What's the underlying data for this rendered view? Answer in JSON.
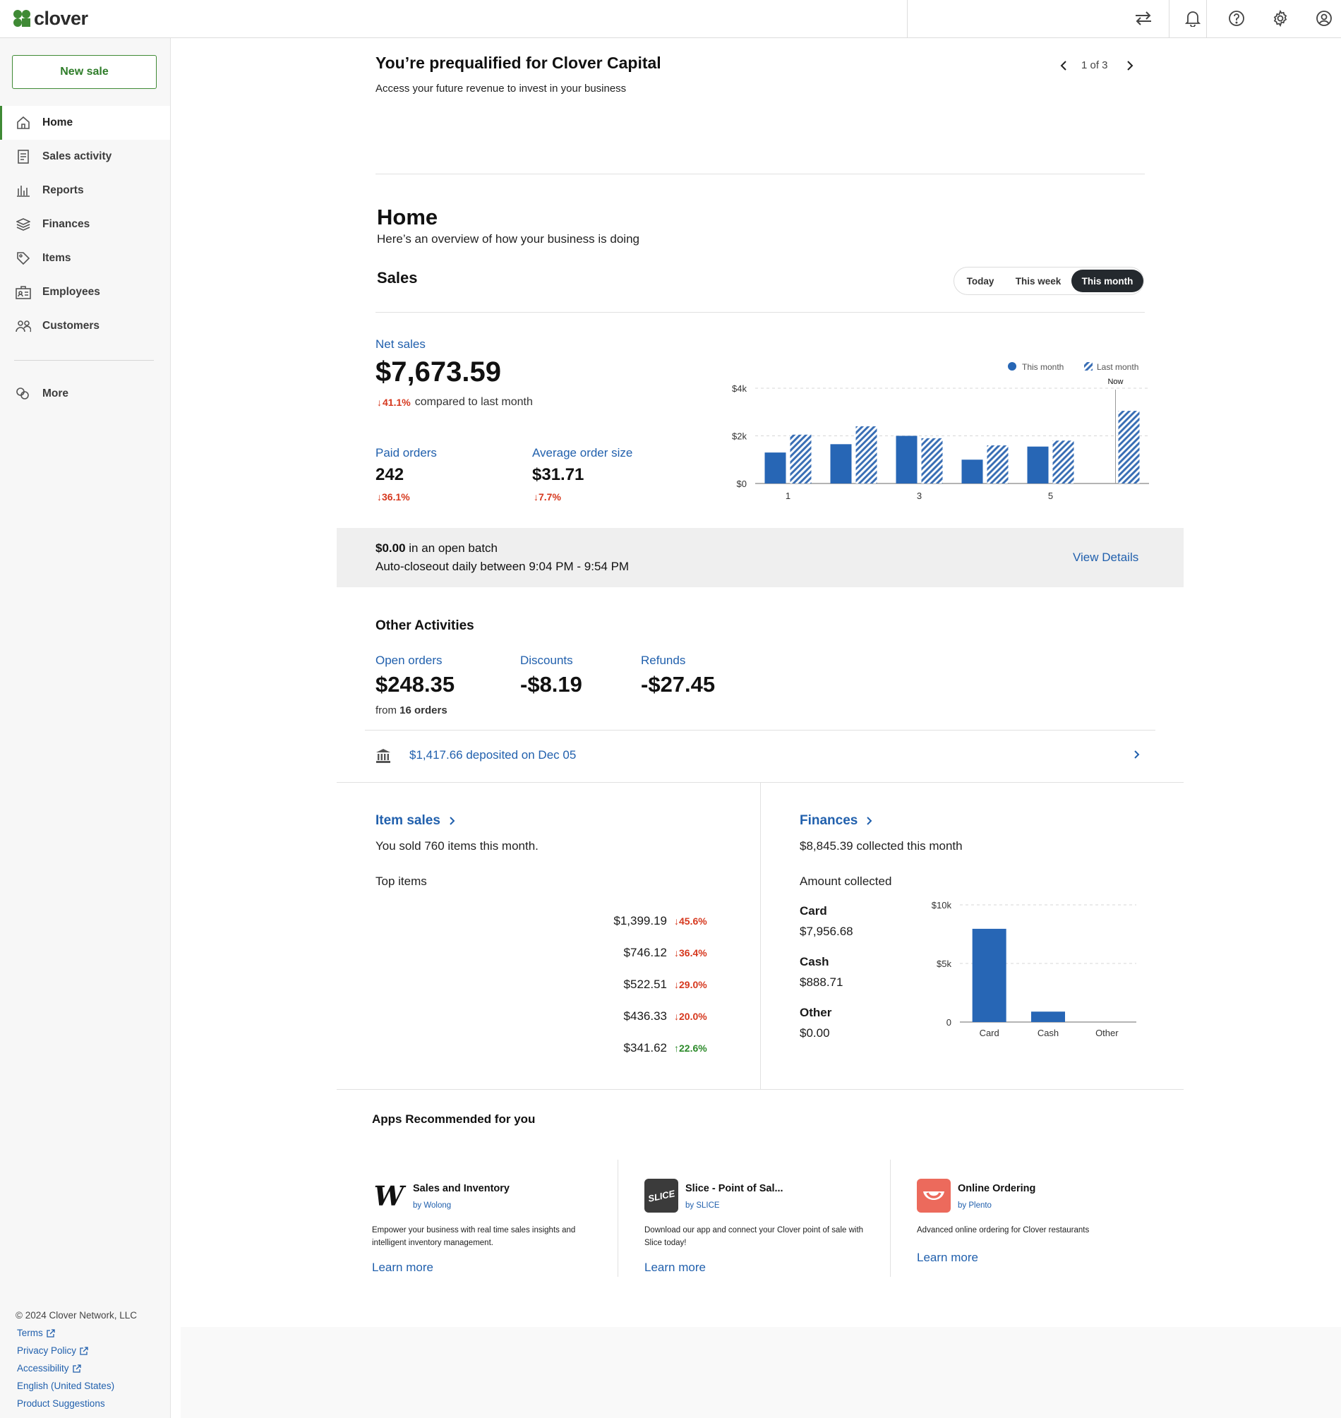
{
  "brand": {
    "name": "clover",
    "green": "#3f8a35",
    "blue": "#2766b5"
  },
  "topbar": {
    "icons": [
      "swap-icon",
      "bell-icon",
      "help-icon",
      "gear-icon",
      "account-icon"
    ]
  },
  "sidebar": {
    "new_sale": "New sale",
    "items": [
      {
        "label": "Home",
        "icon": "home-icon",
        "active": true
      },
      {
        "label": "Sales activity",
        "icon": "receipt-icon"
      },
      {
        "label": "Reports",
        "icon": "bar-chart-icon"
      },
      {
        "label": "Finances",
        "icon": "layers-icon"
      },
      {
        "label": "Items",
        "icon": "tag-icon"
      },
      {
        "label": "Employees",
        "icon": "badge-icon"
      },
      {
        "label": "Customers",
        "icon": "people-icon"
      }
    ],
    "more": "More",
    "footer": {
      "copyright": "© 2024 Clover Network, LLC",
      "links": [
        "Terms",
        "Privacy Policy",
        "Accessibility"
      ],
      "language": "English (United States)",
      "suggestions": "Product Suggestions"
    }
  },
  "promo": {
    "title": "You’re prequalified for Clover Capital",
    "subtitle": "Access your future revenue to invest in your business",
    "pager": "1 of 3"
  },
  "home": {
    "title": "Home",
    "subtitle": "Here’s an overview of how your business is doing",
    "sales_heading": "Sales",
    "ranges": [
      "Today",
      "This week",
      "This month"
    ],
    "selected_range": "This month"
  },
  "net_sales": {
    "label": "Net sales",
    "value": "$7,673.59",
    "change": "41.1%",
    "change_suffix": "compared to last month"
  },
  "paid_orders": {
    "label": "Paid orders",
    "value": "242",
    "change": "36.1%"
  },
  "avg_order": {
    "label": "Average order size",
    "value": "$31.71",
    "change": "7.7%"
  },
  "chart_data": [
    {
      "type": "bar",
      "categories": [
        "1",
        "2",
        "3",
        "4",
        "5",
        "6"
      ],
      "x_tick_labels": [
        "1",
        "3",
        "5"
      ],
      "series": [
        {
          "name": "This month",
          "values": [
            1300,
            1650,
            2000,
            1000,
            1550,
            0
          ],
          "color": "#2766b5",
          "style": "solid"
        },
        {
          "name": "Last month",
          "values": [
            2050,
            2400,
            1900,
            1600,
            1800,
            3050
          ],
          "color": "#2766b5",
          "style": "hatched"
        }
      ],
      "y_tick_labels": [
        "$0",
        "$2k",
        "$4k"
      ],
      "ylim": [
        0,
        4000
      ],
      "annotation": "Now",
      "legend": "top-right",
      "grid": true
    },
    {
      "type": "bar",
      "categories": [
        "Card",
        "Cash",
        "Other"
      ],
      "values": [
        7956.68,
        888.71,
        0
      ],
      "y_tick_labels": [
        "0",
        "$5k",
        "$10k"
      ],
      "ylim": [
        0,
        10000
      ],
      "color": "#2766b5",
      "grid": true
    }
  ],
  "batch": {
    "amount": "$0.00",
    "amount_suffix": "in an open batch",
    "closeout": "Auto-closeout daily between 9:04 PM - 9:54 PM",
    "details": "View Details"
  },
  "other": {
    "heading": "Other Activities",
    "open_orders": {
      "label": "Open orders",
      "value": "$248.35",
      "from_prefix": "from",
      "count": "16 orders"
    },
    "discounts": {
      "label": "Discounts",
      "value": "-$8.19"
    },
    "refunds": {
      "label": "Refunds",
      "value": "-$27.45"
    },
    "deposit": "$1,417.66 deposited on Dec 05"
  },
  "item_sales": {
    "title": "Item sales",
    "summary": "You sold 760 items this month.",
    "top_label": "Top items",
    "rows": [
      {
        "amount": "$1,399.19",
        "change": "45.6%",
        "dir": "down"
      },
      {
        "amount": "$746.12",
        "change": "36.4%",
        "dir": "down"
      },
      {
        "amount": "$522.51",
        "change": "29.0%",
        "dir": "down"
      },
      {
        "amount": "$436.33",
        "change": "20.0%",
        "dir": "down"
      },
      {
        "amount": "$341.62",
        "change": "22.6%",
        "dir": "up"
      }
    ]
  },
  "finances": {
    "title": "Finances",
    "summary": "$8,845.39 collected this month",
    "amount_label": "Amount collected",
    "rows": [
      {
        "label": "Card",
        "value": "$7,956.68"
      },
      {
        "label": "Cash",
        "value": "$888.71"
      },
      {
        "label": "Other",
        "value": "$0.00"
      }
    ]
  },
  "apps": {
    "heading": "Apps Recommended for you",
    "learn_more": "Learn more",
    "cards": [
      {
        "title": "Sales and Inventory",
        "by": "by Wolong",
        "desc": "Empower your business with real time sales insights and intelligent inventory management.",
        "logo": "W"
      },
      {
        "title": "Slice - Point of Sal...",
        "by": "by SLICE",
        "desc": "Download our app and connect your Clover point of sale with Slice today!",
        "logo": "SLICE"
      },
      {
        "title": "Online Ordering",
        "by": "by Plento",
        "desc": "Advanced online ordering for Clover restaurants",
        "logo": "smile"
      }
    ]
  }
}
